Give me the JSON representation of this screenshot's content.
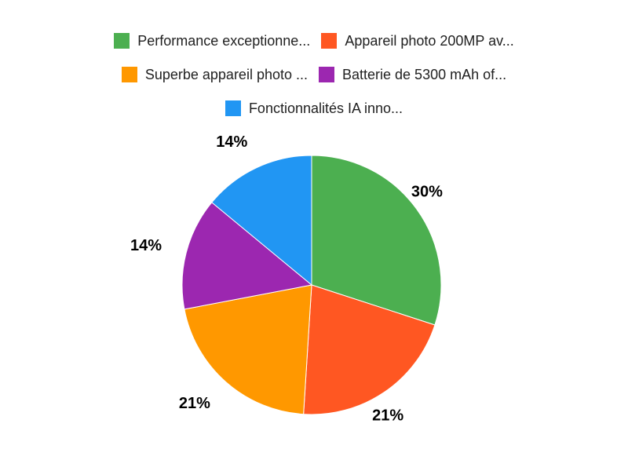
{
  "chart_data": {
    "type": "pie",
    "title": "",
    "categories": [
      "Performance exceptionne...",
      "Appareil photo 200MP av...",
      "Superbe appareil photo ...",
      "Batterie de 5300 mAh of...",
      "Fonctionnalités IA inno..."
    ],
    "values": [
      30,
      21,
      21,
      14,
      14
    ],
    "slice_labels": [
      "30%",
      "21%",
      "21%",
      "14%",
      "14%"
    ],
    "colors": [
      "#4caf50",
      "#ff5722",
      "#ff9800",
      "#9c27b0",
      "#2196f3"
    ],
    "legend_position": "top",
    "start_angle_deg": 0,
    "direction": "clockwise",
    "background_color": "#ffffff",
    "legend_text_color": "#212121",
    "slice_label_color": "#000000",
    "slice_border_color": "#ffffff"
  }
}
